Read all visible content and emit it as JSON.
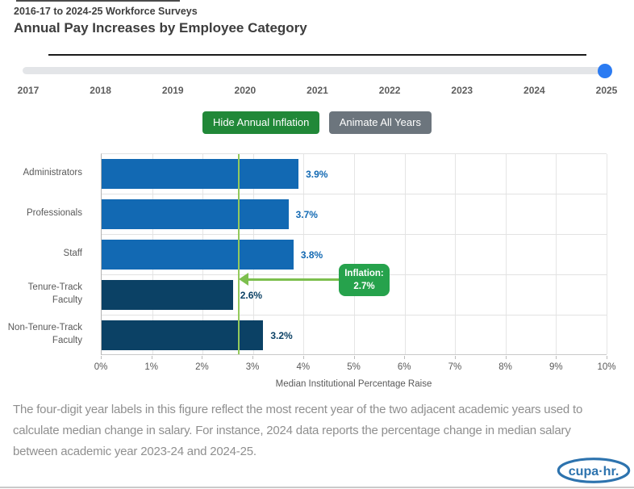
{
  "header": {
    "eyebrow": "2016-17 to 2024-25 Workforce Surveys",
    "title": "Annual Pay Increases by Employee Category"
  },
  "slider": {
    "years": [
      "2017",
      "2018",
      "2019",
      "2020",
      "2021",
      "2022",
      "2023",
      "2024",
      "2025"
    ],
    "selected_year": "2025"
  },
  "buttons": {
    "hide_annual_inflation": "Hide Annual Inflation",
    "animate_all_years": "Animate All Years"
  },
  "chart_data": {
    "type": "bar",
    "orientation": "horizontal",
    "categories": [
      "Administrators",
      "Professionals",
      "Staff",
      "Tenure-Track Faculty",
      "Non-Tenure-Track Faculty"
    ],
    "values": [
      3.9,
      3.7,
      3.8,
      2.6,
      3.2
    ],
    "value_labels": [
      "3.9%",
      "3.7%",
      "3.8%",
      "2.6%",
      "3.2%"
    ],
    "bar_colors": [
      "#1269b3",
      "#1269b3",
      "#1269b3",
      "#0b4165",
      "#0b4165"
    ],
    "xlabel": "Median Institutional Percentage Raise",
    "xlim": [
      0,
      10
    ],
    "tick_labels": [
      "0%",
      "1%",
      "2%",
      "3%",
      "4%",
      "5%",
      "6%",
      "7%",
      "8%",
      "9%",
      "10%"
    ],
    "grid": true,
    "legend": "none",
    "inflation": {
      "label": "Inflation:",
      "value": 2.7,
      "value_label": "2.7%",
      "line_color": "#93c95c",
      "arrow_color": "#7dbf4e",
      "box_color": "#26a24c"
    }
  },
  "footnote": "The four-digit year labels in this figure reflect the most recent year of the two adjacent academic years used to calculate median change in salary. For instance, 2024 data reports the percentage change in median salary between academic year 2023-24 and 2024-25.",
  "logo": {
    "text": "cupa·hr."
  },
  "colors": {
    "bar_blue": "#1269b3",
    "bar_navy": "#0b4165",
    "button_green": "#218838",
    "button_gray": "#6c757d",
    "slider_handle_blue": "#2b7bf2",
    "logo_blue": "#2d73ae"
  }
}
